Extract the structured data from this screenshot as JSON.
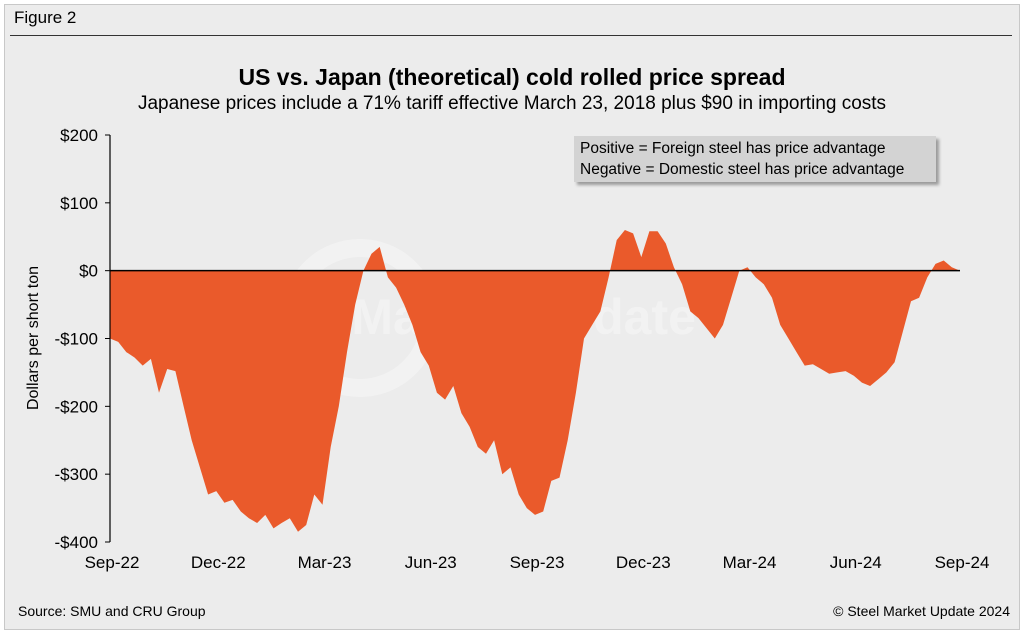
{
  "figure_label": "Figure 2",
  "source": "Source: SMU and CRU Group",
  "copyright": "© Steel Market Update 2024",
  "watermark": "Steel Market Update",
  "colors": {
    "area": "#ea5a2b",
    "background": "#ececec",
    "zero_line": "#000000"
  },
  "legend": {
    "line1": "Positive = Foreign steel has price advantage",
    "line2": "Negative = Domestic steel has price advantage"
  },
  "chart_data": {
    "type": "area",
    "title": "US vs. Japan (theoretical) cold rolled price spread",
    "subtitle": "Japanese prices include a 71% tariff effective March 23, 2018 plus $90 in importing costs",
    "xlabel": "",
    "ylabel": "Dollars per short ton",
    "ylim": [
      -400,
      200
    ],
    "yticks": [
      200,
      100,
      0,
      -100,
      -200,
      -300,
      -400
    ],
    "ytick_labels": [
      "$200",
      "$100",
      "$0",
      "-$100",
      "-$200",
      "-$300",
      "-$400"
    ],
    "xtick_labels": [
      "Sep-22",
      "Dec-22",
      "Mar-23",
      "Jun-23",
      "Sep-23",
      "Dec-23",
      "Mar-24",
      "Jun-24",
      "Sep-24"
    ],
    "xlim": [
      0,
      104
    ],
    "x_unit": "weeks since Sep-22",
    "series": [
      {
        "name": "US vs. Japan cold rolled spread ($/st)",
        "x": [
          0,
          1,
          2,
          3,
          4,
          5,
          6,
          7,
          8,
          9,
          10,
          11,
          12,
          13,
          14,
          15,
          16,
          17,
          18,
          19,
          20,
          21,
          22,
          23,
          24,
          25,
          26,
          27,
          28,
          29,
          30,
          31,
          32,
          33,
          34,
          35,
          36,
          37,
          38,
          39,
          40,
          41,
          42,
          43,
          44,
          45,
          46,
          47,
          48,
          49,
          50,
          51,
          52,
          53,
          54,
          55,
          56,
          57,
          58,
          59,
          60,
          61,
          62,
          63,
          64,
          65,
          66,
          67,
          68,
          69,
          70,
          71,
          72,
          73,
          74,
          75,
          76,
          77,
          78,
          79,
          80,
          81,
          82,
          83,
          84,
          85,
          86,
          87,
          88,
          89,
          90,
          91,
          92,
          93,
          94,
          95,
          96,
          97,
          98,
          99,
          100,
          101,
          102,
          103,
          104
        ],
        "values": [
          -100,
          -105,
          -120,
          -128,
          -140,
          -130,
          -180,
          -145,
          -148,
          -200,
          -250,
          -290,
          -330,
          -325,
          -342,
          -338,
          -355,
          -365,
          -372,
          -360,
          -380,
          -372,
          -365,
          -385,
          -375,
          -330,
          -345,
          -260,
          -200,
          -120,
          -50,
          0,
          25,
          35,
          -10,
          -25,
          -50,
          -80,
          -120,
          -140,
          -180,
          -190,
          -170,
          -210,
          -230,
          -260,
          -270,
          -250,
          -300,
          -290,
          -330,
          -350,
          -360,
          -355,
          -310,
          -305,
          -250,
          -180,
          -100,
          -80,
          -60,
          -10,
          45,
          60,
          55,
          20,
          58,
          58,
          40,
          5,
          -20,
          -60,
          -70,
          -85,
          -100,
          -80,
          -40,
          0,
          5,
          -10,
          -20,
          -40,
          -80,
          -100,
          -120,
          -140,
          -138,
          -145,
          -152,
          -150,
          -148,
          -155,
          -165,
          -170,
          -160,
          -150,
          -135,
          -90,
          -45,
          -40,
          -10,
          10,
          15,
          5,
          0
        ]
      }
    ]
  }
}
